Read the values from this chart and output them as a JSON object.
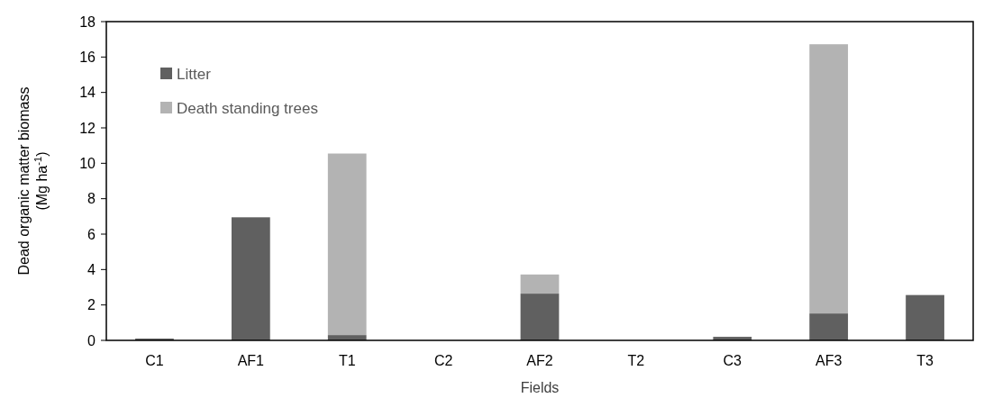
{
  "chart_data": {
    "type": "bar",
    "xlabel": "Fields",
    "ylabel": "Dead organic matter biomass\n(Mg ha$^{-1}$)",
    "categories": [
      "C1",
      "AF1",
      "T1",
      "C2",
      "AF2",
      "T2",
      "C3",
      "AF3",
      "T3"
    ],
    "stacked": true,
    "series": [
      {
        "name": "Litter",
        "color": "#606060",
        "values": [
          0.1,
          6.95,
          0.3,
          0,
          2.64,
          0,
          0.2,
          1.52,
          2.56
        ]
      },
      {
        "name": "Death standing trees",
        "color": "#b3b3b3",
        "values": [
          0,
          0,
          10.25,
          0,
          1.08,
          0,
          0,
          15.2,
          0
        ]
      }
    ],
    "ylim": [
      0,
      18
    ],
    "yticks": [
      0,
      2,
      4,
      6,
      8,
      10,
      12,
      14,
      16,
      18
    ],
    "legend": "top left"
  }
}
